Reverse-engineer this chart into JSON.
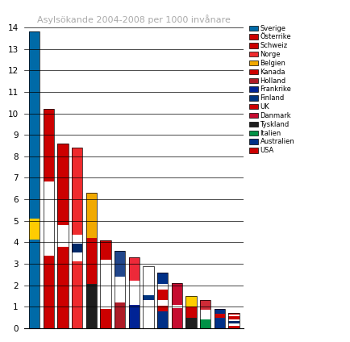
{
  "title": "Asylsökande 2004-2008 per 1000 invånare",
  "countries": [
    "Sverige",
    "Österrike",
    "Schweiz",
    "Norge",
    "Belgien",
    "Kanada",
    "Holland",
    "Frankrike",
    "Finland",
    "UK",
    "Danmark",
    "Tyskland",
    "Italien",
    "Australien",
    "USA"
  ],
  "values": [
    13.8,
    10.2,
    8.6,
    8.4,
    6.3,
    4.1,
    3.6,
    3.3,
    2.9,
    2.6,
    2.1,
    1.5,
    1.3,
    0.9,
    0.7
  ],
  "ylim": [
    0,
    14
  ],
  "yticks": [
    0,
    1,
    2,
    3,
    4,
    5,
    6,
    7,
    8,
    9,
    10,
    11,
    12,
    13,
    14
  ],
  "flag_stripes": {
    "Sverige": [
      [
        "#006AA7",
        0.3
      ],
      [
        "#FECC02",
        0.07
      ],
      [
        "#006AA7",
        0.63
      ]
    ],
    "Österrike": [
      [
        "#CC0000",
        0.33
      ],
      [
        "#FFFFFF",
        0.34
      ],
      [
        "#CC0000",
        0.33
      ]
    ],
    "Schweiz": [
      [
        "#CC0000",
        0.44
      ],
      [
        "#FFFFFF",
        0.12
      ],
      [
        "#CC0000",
        0.44
      ]
    ],
    "Norge": [
      [
        "#EF2B2D",
        0.37
      ],
      [
        "#FFFFFF",
        0.05
      ],
      [
        "#002868",
        0.05
      ],
      [
        "#FFFFFF",
        0.05
      ],
      [
        "#EF2B2D",
        0.48
      ]
    ],
    "Belgien": [
      [
        "#1E1E1E",
        0.33
      ],
      [
        "#CC0000",
        0.34
      ],
      [
        "#F1A900",
        0.33
      ]
    ],
    "Kanada": [
      [
        "#CC0000",
        0.22
      ],
      [
        "#FFFFFF",
        0.56
      ],
      [
        "#CC0000",
        0.22
      ]
    ],
    "Holland": [
      [
        "#AE1C28",
        0.33
      ],
      [
        "#FFFFFF",
        0.34
      ],
      [
        "#21468B",
        0.33
      ]
    ],
    "Frankrike": [
      [
        "#002395",
        0.33
      ],
      [
        "#FFFFFF",
        0.34
      ],
      [
        "#ED2939",
        0.33
      ]
    ],
    "Finland": [
      [
        "#FFFFFF",
        0.45
      ],
      [
        "#003580",
        0.08
      ],
      [
        "#FFFFFF",
        0.47
      ]
    ],
    "UK": [
      [
        "#003087",
        0.3
      ],
      [
        "#CC0000",
        0.1
      ],
      [
        "#FFFFFF",
        0.1
      ],
      [
        "#CC0000",
        0.2
      ],
      [
        "#FFFFFF",
        0.1
      ],
      [
        "#003087",
        0.2
      ]
    ],
    "Danmark": [
      [
        "#C60C30",
        0.44
      ],
      [
        "#FFFFFF",
        0.08
      ],
      [
        "#C60C30",
        0.48
      ]
    ],
    "Tyskland": [
      [
        "#1E1E1E",
        0.33
      ],
      [
        "#CC0000",
        0.34
      ],
      [
        "#FFCE00",
        0.33
      ]
    ],
    "Italien": [
      [
        "#009246",
        0.33
      ],
      [
        "#FFFFFF",
        0.34
      ],
      [
        "#CE2B37",
        0.33
      ]
    ],
    "Australien": [
      [
        "#003087",
        0.55
      ],
      [
        "#CC0000",
        0.22
      ],
      [
        "#003087",
        0.23
      ]
    ],
    "USA": [
      [
        "#CC0000",
        0.18
      ],
      [
        "#FFFFFF",
        0.12
      ],
      [
        "#002868",
        0.18
      ],
      [
        "#FFFFFF",
        0.12
      ],
      [
        "#CC0000",
        0.18
      ],
      [
        "#FFFFFF",
        0.12
      ],
      [
        "#CC0000",
        0.1
      ]
    ]
  },
  "legend_icon_colors": {
    "Sverige": "#006AA7",
    "Österrike": "#CC0000",
    "Schweiz": "#CC0000",
    "Norge": "#EF2B2D",
    "Belgien": "#F1A900",
    "Kanada": "#CC0000",
    "Holland": "#AE1C28",
    "Frankrike": "#002395",
    "Finland": "#003580",
    "UK": "#CC0000",
    "Danmark": "#C60C30",
    "Tyskland": "#1E1E1E",
    "Italien": "#009246",
    "Australien": "#003087",
    "USA": "#CC0000"
  },
  "bg_color": "#FFFFFF",
  "title_color": "#AAAAAA",
  "bar_width": 0.75
}
